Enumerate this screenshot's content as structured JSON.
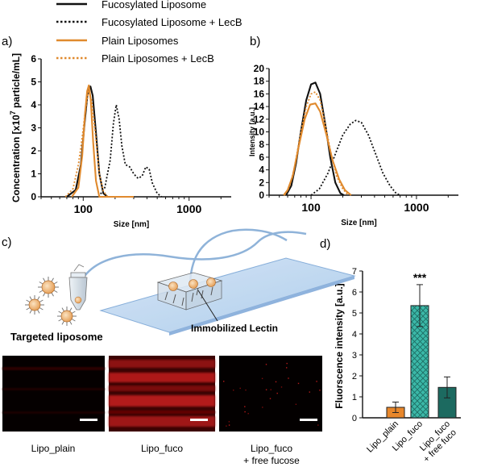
{
  "legend": {
    "entries": [
      {
        "label": "Fucosylated Liposome",
        "color": "#111111",
        "dash": "solid"
      },
      {
        "label": "Fucosylated Liposome + LecB",
        "color": "#111111",
        "dash": "dotted"
      },
      {
        "label": "Plain Liposomes",
        "color": "#e08a2e",
        "dash": "solid"
      },
      {
        "label": "Plain Liposomes + LecB",
        "color": "#e08a2e",
        "dash": "dotted"
      }
    ]
  },
  "panel_labels": {
    "a": "a)",
    "b": "b)",
    "c": "c)",
    "d": "d)"
  },
  "chart_data": [
    {
      "id": "a",
      "type": "line",
      "xscale": "log",
      "xlabel": "Size [nm]",
      "ylabel_prefix": "Concentration [x10",
      "ylabel_sup": "7",
      "ylabel_suffix": " particle/mL]",
      "xlim": [
        40,
        2500
      ],
      "ylim": [
        0,
        6
      ],
      "xticks": [
        {
          "v": 100,
          "label": "100"
        },
        {
          "v": 1000,
          "label": "1000"
        }
      ],
      "yticks": [
        0,
        1,
        2,
        3,
        4,
        5,
        6
      ],
      "series": [
        {
          "name": "Fucosylated Liposome",
          "color": "#111111",
          "dash": "solid",
          "points": [
            [
              70,
              0
            ],
            [
              85,
              0.3
            ],
            [
              95,
              1.4
            ],
            [
              103,
              3.2
            ],
            [
              110,
              4.5
            ],
            [
              117,
              4.8
            ],
            [
              123,
              4.4
            ],
            [
              132,
              2.8
            ],
            [
              142,
              1.0
            ],
            [
              155,
              0.15
            ],
            [
              170,
              0
            ],
            [
              300,
              0
            ]
          ]
        },
        {
          "name": "Fucosylated Liposome + LecB",
          "color": "#111111",
          "dash": "dotted",
          "points": [
            [
              140,
              0
            ],
            [
              160,
              0.4
            ],
            [
              180,
              1.6
            ],
            [
              193,
              3.2
            ],
            [
              205,
              4.0
            ],
            [
              218,
              3.4
            ],
            [
              232,
              2.2
            ],
            [
              250,
              1.4
            ],
            [
              275,
              1.3
            ],
            [
              300,
              1.0
            ],
            [
              330,
              0.8
            ],
            [
              360,
              0.9
            ],
            [
              390,
              1.3
            ],
            [
              420,
              1.2
            ],
            [
              450,
              0.6
            ],
            [
              500,
              0.15
            ],
            [
              550,
              0
            ]
          ]
        },
        {
          "name": "Plain Liposomes",
          "color": "#e08a2e",
          "dash": "solid",
          "points": [
            [
              78,
              0
            ],
            [
              90,
              0.4
            ],
            [
              98,
              1.8
            ],
            [
              104,
              3.6
            ],
            [
              109,
              4.6
            ],
            [
              113,
              4.85
            ],
            [
              118,
              4.2
            ],
            [
              124,
              2.4
            ],
            [
              132,
              0.7
            ],
            [
              142,
              0
            ],
            [
              300,
              0
            ]
          ]
        },
        {
          "name": "Plain Liposomes + LecB",
          "color": "#e08a2e",
          "dash": "dotted",
          "points": [
            [
              68,
              0
            ],
            [
              80,
              0.35
            ],
            [
              90,
              1.4
            ],
            [
              98,
              2.6
            ],
            [
              105,
              3.8
            ],
            [
              112,
              4.6
            ],
            [
              120,
              4.2
            ],
            [
              130,
              2.8
            ],
            [
              142,
              1.0
            ],
            [
              155,
              0.25
            ],
            [
              170,
              0
            ]
          ]
        }
      ]
    },
    {
      "id": "b",
      "type": "line",
      "xscale": "log",
      "xlabel": "Size [nm]",
      "ylabel": "Intensity [a.u.]",
      "xlim": [
        40,
        2500
      ],
      "ylim": [
        0,
        20
      ],
      "xticks": [
        {
          "v": 100,
          "label": "100"
        },
        {
          "v": 1000,
          "label": "1000"
        }
      ],
      "yticks": [
        0,
        2,
        4,
        6,
        8,
        10,
        12,
        14,
        16,
        18,
        20
      ],
      "series": [
        {
          "name": "Fucosylated Liposome",
          "color": "#111111",
          "dash": "solid",
          "points": [
            [
              58,
              0
            ],
            [
              65,
              1.5
            ],
            [
              72,
              5
            ],
            [
              80,
              10
            ],
            [
              90,
              15
            ],
            [
              100,
              17.5
            ],
            [
              110,
              17.8
            ],
            [
              122,
              16
            ],
            [
              137,
              11
            ],
            [
              152,
              6
            ],
            [
              170,
              2
            ],
            [
              190,
              0.3
            ],
            [
              205,
              0
            ]
          ]
        },
        {
          "name": "Fucosylated Liposome + LecB",
          "color": "#111111",
          "dash": "dotted",
          "points": [
            [
              100,
              0
            ],
            [
              120,
              1
            ],
            [
              145,
              3.5
            ],
            [
              170,
              6.5
            ],
            [
              200,
              9.5
            ],
            [
              235,
              11.2
            ],
            [
              265,
              11.8
            ],
            [
              300,
              11.5
            ],
            [
              350,
              9.5
            ],
            [
              410,
              6.5
            ],
            [
              480,
              3.5
            ],
            [
              560,
              1.5
            ],
            [
              640,
              0.3
            ],
            [
              700,
              0
            ]
          ]
        },
        {
          "name": "Plain Liposomes",
          "color": "#e08a2e",
          "dash": "solid",
          "points": [
            [
              55,
              0
            ],
            [
              60,
              0.8
            ],
            [
              67,
              3
            ],
            [
              76,
              7.5
            ],
            [
              87,
              12
            ],
            [
              98,
              14.3
            ],
            [
              110,
              14.5
            ],
            [
              122,
              13.2
            ],
            [
              140,
              9.5
            ],
            [
              160,
              5.5
            ],
            [
              185,
              2.5
            ],
            [
              210,
              0.8
            ],
            [
              240,
              0
            ]
          ]
        },
        {
          "name": "Plain Liposomes + LecB",
          "color": "#e08a2e",
          "dash": "dotted",
          "points": [
            [
              56,
              0
            ],
            [
              62,
              1.2
            ],
            [
              69,
              4
            ],
            [
              78,
              9
            ],
            [
              90,
              14
            ],
            [
              100,
              16
            ],
            [
              110,
              16.3
            ],
            [
              122,
              15
            ],
            [
              137,
              11
            ],
            [
              155,
              6.5
            ],
            [
              175,
              3
            ],
            [
              200,
              1
            ],
            [
              225,
              0
            ]
          ]
        }
      ]
    },
    {
      "id": "d",
      "type": "bar",
      "ylabel": "Fluorscence intensity [a.u.]",
      "ylim": [
        0,
        7
      ],
      "yticks": [
        0,
        1,
        2,
        3,
        4,
        5,
        6,
        7
      ],
      "categories": [
        "Lipo_plain",
        "Lipo_fuco",
        "Lipo_fuco\n+ free fuco"
      ],
      "values": [
        0.5,
        5.35,
        1.45
      ],
      "errors": [
        0.25,
        1.0,
        0.5
      ],
      "colors": [
        "#e8872b",
        "#3bb8a8",
        "#1c6a60"
      ],
      "hatched": [
        false,
        true,
        false
      ],
      "significance": [
        {
          "index": 1,
          "label": "***"
        }
      ]
    }
  ],
  "panel_c": {
    "targeted_label": "Targeted liposome",
    "lectin_label": "Immobilized Lectin",
    "micrographs": [
      {
        "caption_lines": [
          "Lipo_plain"
        ],
        "intensity": "low"
      },
      {
        "caption_lines": [
          "Lipo_fuco"
        ],
        "intensity": "high"
      },
      {
        "caption_lines": [
          "Lipo_fuco",
          "+ free fucose"
        ],
        "intensity": "none"
      }
    ]
  }
}
